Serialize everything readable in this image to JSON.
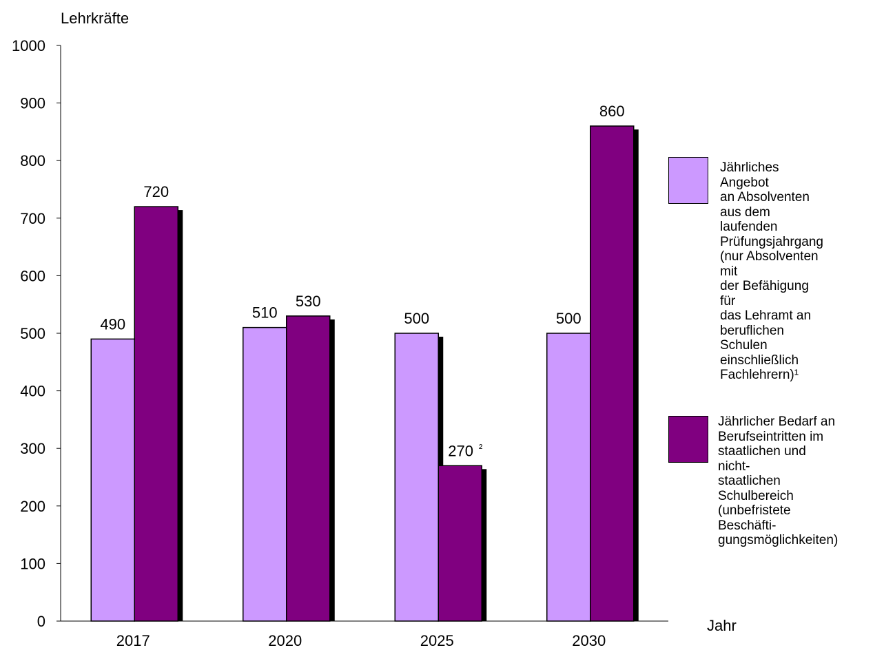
{
  "chart_data": {
    "type": "bar",
    "ylabel": "Lehrkräfte",
    "xlabel": "Jahr",
    "ylim": [
      0,
      1000
    ],
    "yticks": [
      0,
      100,
      200,
      300,
      400,
      500,
      600,
      700,
      800,
      900,
      1000
    ],
    "categories": [
      "2017",
      "2020",
      "2025",
      "2030"
    ],
    "series": [
      {
        "name": "Jährliches Angebot an Absolventen aus dem laufenden Prüfungsjahrgang (nur Absolventen mit der Befähigung für das Lehramt an beruflichen Schulen einschließlich Fachlehrern)¹",
        "values": [
          490,
          510,
          500,
          500
        ],
        "labels": [
          "490",
          "510",
          "500",
          "500"
        ],
        "color": "#cc99ff"
      },
      {
        "name": "Jährlicher Bedarf an Berufseintritten im staatlichen und nicht-staatlichen Schulbereich (unbefristete Beschäftigungsmöglichkeiten)",
        "values": [
          720,
          530,
          270,
          860
        ],
        "labels": [
          "720",
          "530",
          "270 ²",
          "860"
        ],
        "color": "#800080"
      }
    ],
    "legend_position": "right",
    "grid": false
  },
  "legend": {
    "supply_lines": [
      "Jährliches Angebot",
      "an Absolventen",
      "aus dem laufenden",
      "Prüfungsjahrgang",
      "(nur Absolventen mit",
      "der Befähigung für",
      "das Lehramt an",
      "beruflichen Schulen",
      "einschließlich",
      "Fachlehrern)¹"
    ],
    "demand_lines": [
      "Jährlicher Bedarf an",
      "Berufseintritten im",
      "staatlichen und nicht-",
      "staatlichen Schulbereich",
      "(unbefristete Beschäfti-",
      "gungsmöglichkeiten)"
    ]
  }
}
